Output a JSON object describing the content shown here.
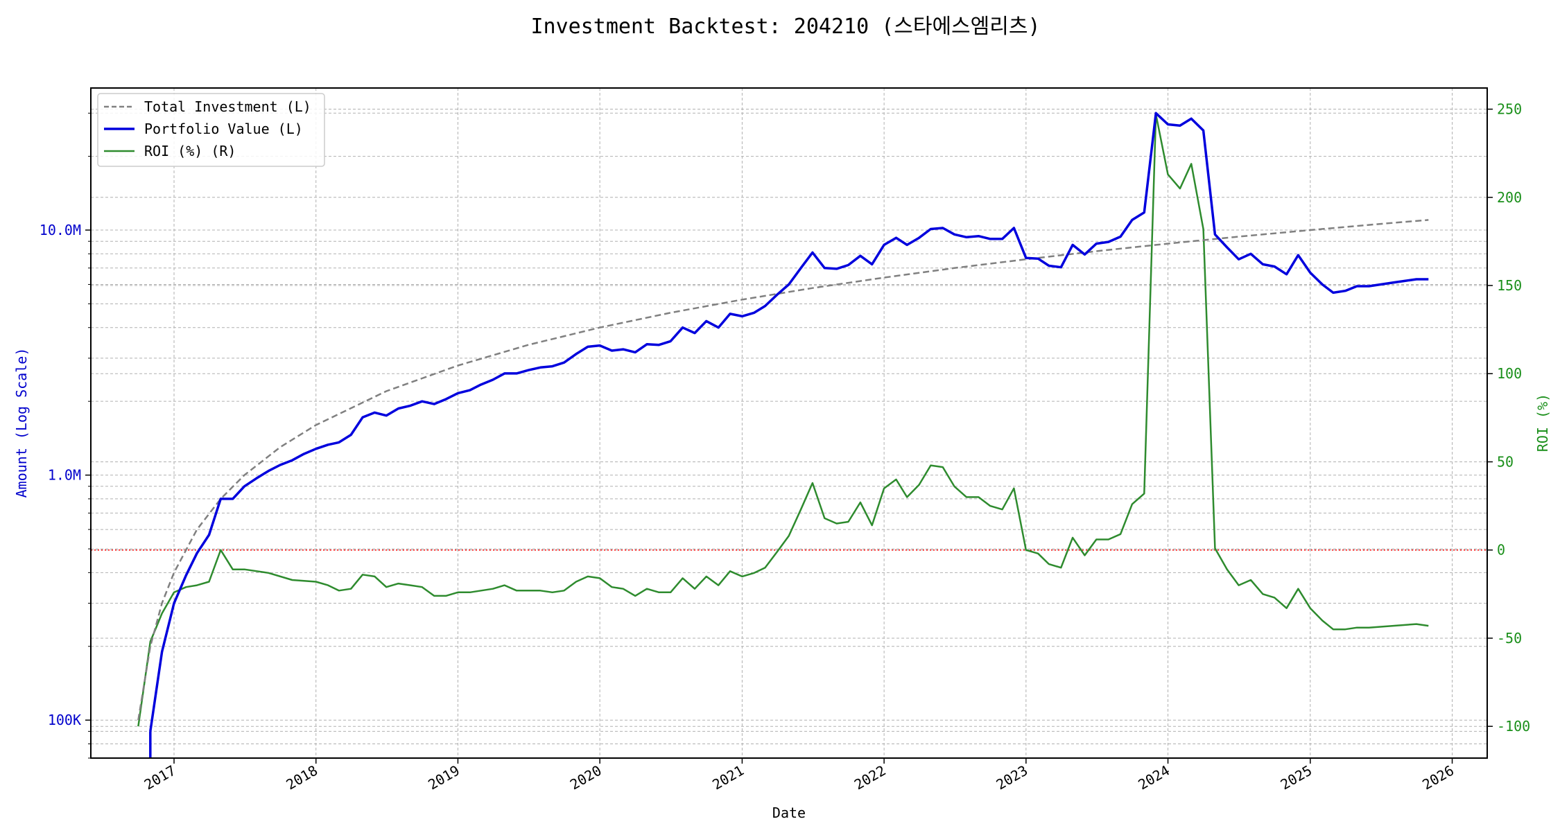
{
  "chart_data": {
    "type": "line",
    "title": "Investment Backtest: 204210 (스타에스엠리츠)",
    "xlabel": "Date",
    "ylabel_left": "Amount (Log Scale)",
    "ylabel_right": "ROI (%)",
    "left_scale": "log",
    "xlim": [
      "2016-06-01",
      "2026-04-01"
    ],
    "ylim_left": [
      70000,
      38000000
    ],
    "ylim_right": [
      -118,
      262
    ],
    "grid": true,
    "legend_position": "top-left",
    "x_ticks": [
      "2017",
      "2018",
      "2019",
      "2020",
      "2021",
      "2022",
      "2023",
      "2024",
      "2025",
      "2026"
    ],
    "y_ticks_left": [
      "100K",
      "1.0M",
      "10.0M"
    ],
    "y_ticks_left_values": [
      100000,
      1000000,
      10000000
    ],
    "y_ticks_right": [
      "-100",
      "-50",
      "0",
      "50",
      "100",
      "150",
      "200",
      "250"
    ],
    "y_ticks_right_values": [
      -100,
      -50,
      0,
      50,
      100,
      150,
      200,
      250
    ],
    "zero_reference_line": {
      "axis": "right",
      "value": 0,
      "color": "#ff0000"
    },
    "colors": {
      "total_investment": "#808080",
      "portfolio_value": "#0000dd",
      "roi": "#2e8b2e",
      "left_axis": "#0000cc",
      "right_axis": "#1a8f1a"
    },
    "series": [
      {
        "name": "Total Investment (L)",
        "axis": "left",
        "style": "dashed",
        "points": [
          [
            "2016-10-01",
            100000
          ],
          [
            "2016-11-01",
            200000
          ],
          [
            "2016-12-01",
            300000
          ],
          [
            "2017-01-01",
            400000
          ],
          [
            "2017-03-01",
            600000
          ],
          [
            "2017-05-01",
            800000
          ],
          [
            "2017-07-01",
            1000000
          ],
          [
            "2017-10-01",
            1300000
          ],
          [
            "2018-01-01",
            1600000
          ],
          [
            "2018-07-01",
            2200000
          ],
          [
            "2019-01-01",
            2800000
          ],
          [
            "2019-07-01",
            3400000
          ],
          [
            "2020-01-01",
            4000000
          ],
          [
            "2020-07-01",
            4600000
          ],
          [
            "2021-01-01",
            5200000
          ],
          [
            "2021-07-01",
            5800000
          ],
          [
            "2022-01-01",
            6400000
          ],
          [
            "2022-07-01",
            7000000
          ],
          [
            "2023-01-01",
            7600000
          ],
          [
            "2023-07-01",
            8200000
          ],
          [
            "2024-01-01",
            8800000
          ],
          [
            "2024-07-01",
            9400000
          ],
          [
            "2025-01-01",
            10000000
          ],
          [
            "2025-07-01",
            10600000
          ],
          [
            "2025-11-01",
            11000000
          ]
        ]
      },
      {
        "name": "Portfolio Value (L)",
        "axis": "left",
        "style": "solid",
        "points": [
          [
            "2016-11-01",
            90000
          ],
          [
            "2016-12-01",
            190000
          ],
          [
            "2017-01-01",
            300000
          ],
          [
            "2017-02-01",
            390000
          ],
          [
            "2017-03-01",
            480000
          ],
          [
            "2017-04-01",
            570000
          ],
          [
            "2017-05-01",
            800000
          ],
          [
            "2017-06-01",
            800000
          ],
          [
            "2017-07-01",
            900000
          ],
          [
            "2017-08-01",
            970000
          ],
          [
            "2017-09-01",
            1040000
          ],
          [
            "2017-10-01",
            1100000
          ],
          [
            "2017-11-01",
            1150000
          ],
          [
            "2017-12-01",
            1220000
          ],
          [
            "2018-01-01",
            1280000
          ],
          [
            "2018-02-01",
            1330000
          ],
          [
            "2018-03-01",
            1360000
          ],
          [
            "2018-04-01",
            1460000
          ],
          [
            "2018-05-01",
            1720000
          ],
          [
            "2018-06-01",
            1800000
          ],
          [
            "2018-07-01",
            1750000
          ],
          [
            "2018-08-01",
            1870000
          ],
          [
            "2018-09-01",
            1920000
          ],
          [
            "2018-10-01",
            2000000
          ],
          [
            "2018-11-01",
            1950000
          ],
          [
            "2018-12-01",
            2040000
          ],
          [
            "2019-01-01",
            2160000
          ],
          [
            "2019-02-01",
            2220000
          ],
          [
            "2019-03-01",
            2340000
          ],
          [
            "2019-04-01",
            2450000
          ],
          [
            "2019-05-01",
            2600000
          ],
          [
            "2019-06-01",
            2600000
          ],
          [
            "2019-07-01",
            2680000
          ],
          [
            "2019-08-01",
            2750000
          ],
          [
            "2019-09-01",
            2780000
          ],
          [
            "2019-10-01",
            2880000
          ],
          [
            "2019-11-01",
            3120000
          ],
          [
            "2019-12-01",
            3340000
          ],
          [
            "2020-01-01",
            3380000
          ],
          [
            "2020-02-01",
            3220000
          ],
          [
            "2020-03-01",
            3260000
          ],
          [
            "2020-04-01",
            3170000
          ],
          [
            "2020-05-01",
            3420000
          ],
          [
            "2020-06-01",
            3400000
          ],
          [
            "2020-07-01",
            3520000
          ],
          [
            "2020-08-01",
            4000000
          ],
          [
            "2020-09-01",
            3800000
          ],
          [
            "2020-10-01",
            4250000
          ],
          [
            "2020-11-01",
            4000000
          ],
          [
            "2020-12-01",
            4550000
          ],
          [
            "2021-01-01",
            4450000
          ],
          [
            "2021-02-01",
            4600000
          ],
          [
            "2021-03-01",
            4900000
          ],
          [
            "2021-04-01",
            5450000
          ],
          [
            "2021-05-01",
            6000000
          ],
          [
            "2021-06-01",
            7000000
          ],
          [
            "2021-07-01",
            8100000
          ],
          [
            "2021-08-01",
            7000000
          ],
          [
            "2021-09-01",
            6950000
          ],
          [
            "2021-10-01",
            7200000
          ],
          [
            "2021-11-01",
            7850000
          ],
          [
            "2021-12-01",
            7250000
          ],
          [
            "2022-01-01",
            8700000
          ],
          [
            "2022-02-01",
            9300000
          ],
          [
            "2022-03-01",
            8700000
          ],
          [
            "2022-04-01",
            9300000
          ],
          [
            "2022-05-01",
            10100000
          ],
          [
            "2022-06-01",
            10200000
          ],
          [
            "2022-07-01",
            9600000
          ],
          [
            "2022-08-01",
            9350000
          ],
          [
            "2022-09-01",
            9450000
          ],
          [
            "2022-10-01",
            9200000
          ],
          [
            "2022-11-01",
            9200000
          ],
          [
            "2022-12-01",
            10200000
          ],
          [
            "2023-01-01",
            7700000
          ],
          [
            "2023-02-01",
            7650000
          ],
          [
            "2023-03-01",
            7150000
          ],
          [
            "2023-04-01",
            7050000
          ],
          [
            "2023-05-01",
            8700000
          ],
          [
            "2023-06-01",
            7950000
          ],
          [
            "2023-07-01",
            8800000
          ],
          [
            "2023-08-01",
            8950000
          ],
          [
            "2023-09-01",
            9400000
          ],
          [
            "2023-10-01",
            11000000
          ],
          [
            "2023-11-01",
            11800000
          ],
          [
            "2023-12-01",
            30000000
          ],
          [
            "2024-01-01",
            27000000
          ],
          [
            "2024-02-01",
            26700000
          ],
          [
            "2024-03-01",
            28500000
          ],
          [
            "2024-04-01",
            25500000
          ],
          [
            "2024-05-01",
            9600000
          ],
          [
            "2024-06-01",
            8500000
          ],
          [
            "2024-07-01",
            7600000
          ],
          [
            "2024-08-01",
            8000000
          ],
          [
            "2024-09-01",
            7250000
          ],
          [
            "2024-10-01",
            7100000
          ],
          [
            "2024-11-01",
            6600000
          ],
          [
            "2024-12-01",
            7900000
          ],
          [
            "2025-01-01",
            6700000
          ],
          [
            "2025-02-01",
            6000000
          ],
          [
            "2025-03-01",
            5550000
          ],
          [
            "2025-04-01",
            5650000
          ],
          [
            "2025-05-01",
            5900000
          ],
          [
            "2025-06-01",
            5900000
          ],
          [
            "2025-07-01",
            6000000
          ],
          [
            "2025-08-01",
            6100000
          ],
          [
            "2025-09-01",
            6200000
          ],
          [
            "2025-10-01",
            6300000
          ],
          [
            "2025-11-01",
            6300000
          ]
        ]
      },
      {
        "name": "ROI (%) (R)",
        "axis": "right",
        "style": "solid",
        "points": [
          [
            "2016-10-01",
            -100
          ],
          [
            "2016-11-01",
            -52
          ],
          [
            "2016-12-01",
            -36
          ],
          [
            "2017-01-01",
            -24
          ],
          [
            "2017-02-01",
            -21
          ],
          [
            "2017-03-01",
            -20
          ],
          [
            "2017-04-01",
            -18
          ],
          [
            "2017-05-01",
            0
          ],
          [
            "2017-06-01",
            -11
          ],
          [
            "2017-07-01",
            -11
          ],
          [
            "2017-09-01",
            -13
          ],
          [
            "2017-11-01",
            -17
          ],
          [
            "2018-01-01",
            -18
          ],
          [
            "2018-02-01",
            -20
          ],
          [
            "2018-03-01",
            -23
          ],
          [
            "2018-04-01",
            -22
          ],
          [
            "2018-05-01",
            -14
          ],
          [
            "2018-06-01",
            -15
          ],
          [
            "2018-07-01",
            -21
          ],
          [
            "2018-08-01",
            -19
          ],
          [
            "2018-09-01",
            -20
          ],
          [
            "2018-10-01",
            -21
          ],
          [
            "2018-11-01",
            -26
          ],
          [
            "2018-12-01",
            -26
          ],
          [
            "2019-01-01",
            -24
          ],
          [
            "2019-02-01",
            -24
          ],
          [
            "2019-04-01",
            -22
          ],
          [
            "2019-05-01",
            -20
          ],
          [
            "2019-06-01",
            -23
          ],
          [
            "2019-08-01",
            -23
          ],
          [
            "2019-09-01",
            -24
          ],
          [
            "2019-10-01",
            -23
          ],
          [
            "2019-11-01",
            -18
          ],
          [
            "2019-12-01",
            -15
          ],
          [
            "2020-01-01",
            -16
          ],
          [
            "2020-02-01",
            -21
          ],
          [
            "2020-03-01",
            -22
          ],
          [
            "2020-04-01",
            -26
          ],
          [
            "2020-05-01",
            -22
          ],
          [
            "2020-06-01",
            -24
          ],
          [
            "2020-07-01",
            -24
          ],
          [
            "2020-08-01",
            -16
          ],
          [
            "2020-09-01",
            -22
          ],
          [
            "2020-10-01",
            -15
          ],
          [
            "2020-11-01",
            -20
          ],
          [
            "2020-12-01",
            -12
          ],
          [
            "2021-01-01",
            -15
          ],
          [
            "2021-02-01",
            -13
          ],
          [
            "2021-03-01",
            -10
          ],
          [
            "2021-04-01",
            -1
          ],
          [
            "2021-05-01",
            8
          ],
          [
            "2021-06-01",
            23
          ],
          [
            "2021-07-01",
            38
          ],
          [
            "2021-08-01",
            18
          ],
          [
            "2021-09-01",
            15
          ],
          [
            "2021-10-01",
            16
          ],
          [
            "2021-11-01",
            27
          ],
          [
            "2021-12-01",
            14
          ],
          [
            "2022-01-01",
            35
          ],
          [
            "2022-02-01",
            40
          ],
          [
            "2022-03-01",
            30
          ],
          [
            "2022-04-01",
            37
          ],
          [
            "2022-05-01",
            48
          ],
          [
            "2022-06-01",
            47
          ],
          [
            "2022-07-01",
            36
          ],
          [
            "2022-08-01",
            30
          ],
          [
            "2022-09-01",
            30
          ],
          [
            "2022-10-01",
            25
          ],
          [
            "2022-11-01",
            23
          ],
          [
            "2022-12-01",
            35
          ],
          [
            "2023-01-01",
            0
          ],
          [
            "2023-02-01",
            -2
          ],
          [
            "2023-03-01",
            -8
          ],
          [
            "2023-04-01",
            -10
          ],
          [
            "2023-05-01",
            7
          ],
          [
            "2023-06-01",
            -3
          ],
          [
            "2023-07-01",
            6
          ],
          [
            "2023-08-01",
            6
          ],
          [
            "2023-09-01",
            9
          ],
          [
            "2023-10-01",
            26
          ],
          [
            "2023-11-01",
            32
          ],
          [
            "2023-12-01",
            247
          ],
          [
            "2024-01-01",
            213
          ],
          [
            "2024-02-01",
            205
          ],
          [
            "2024-03-01",
            219
          ],
          [
            "2024-04-01",
            182
          ],
          [
            "2024-05-01",
            1
          ],
          [
            "2024-06-01",
            -11
          ],
          [
            "2024-07-01",
            -20
          ],
          [
            "2024-08-01",
            -17
          ],
          [
            "2024-09-01",
            -25
          ],
          [
            "2024-10-01",
            -27
          ],
          [
            "2024-11-01",
            -33
          ],
          [
            "2024-12-01",
            -22
          ],
          [
            "2025-01-01",
            -33
          ],
          [
            "2025-02-01",
            -40
          ],
          [
            "2025-03-01",
            -45
          ],
          [
            "2025-04-01",
            -45
          ],
          [
            "2025-05-01",
            -44
          ],
          [
            "2025-06-01",
            -44
          ],
          [
            "2025-10-01",
            -42
          ],
          [
            "2025-11-01",
            -43
          ]
        ]
      }
    ]
  }
}
